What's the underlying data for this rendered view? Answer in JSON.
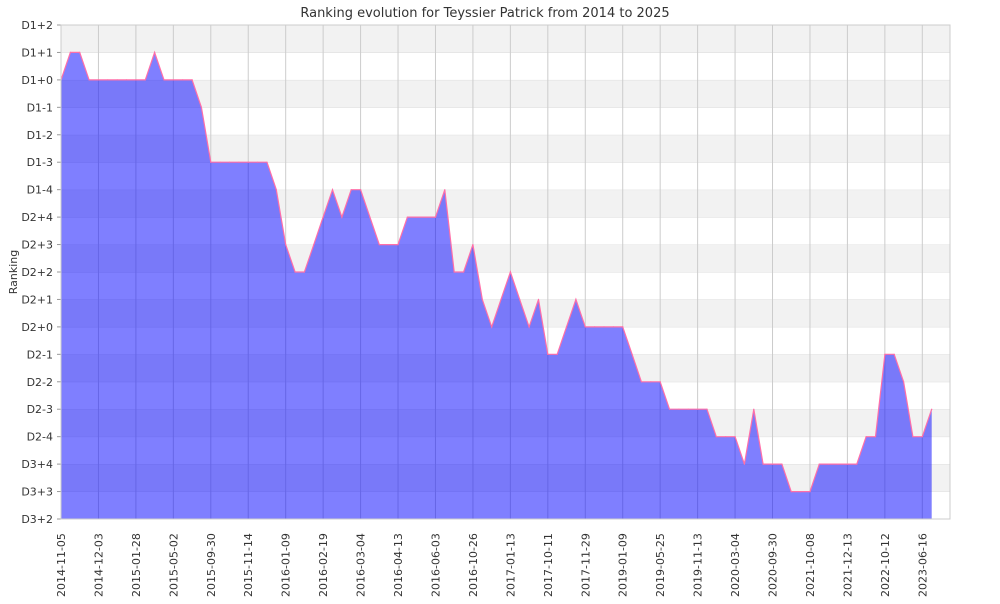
{
  "chart_data": {
    "type": "area",
    "title": "Ranking evolution for Teyssier Patrick from 2014 to 2025",
    "xlabel": "",
    "ylabel": "Ranking",
    "y_levels": [
      "D3+2",
      "D3+3",
      "D3+4",
      "D2-4",
      "D2-3",
      "D2-2",
      "D2-1",
      "D2+0",
      "D2+1",
      "D2+2",
      "D2+3",
      "D2+4",
      "D1-4",
      "D1-3",
      "D1-2",
      "D1-1",
      "D1+0",
      "D1+1",
      "D1+2"
    ],
    "x_tick_labels": [
      "2014-11-05",
      "2014-12-03",
      "2015-01-28",
      "2015-05-02",
      "2015-09-30",
      "2015-11-14",
      "2016-01-09",
      "2016-02-19",
      "2016-03-04",
      "2016-04-13",
      "2016-06-03",
      "2016-10-26",
      "2017-01-13",
      "2017-10-11",
      "2017-11-29",
      "2019-01-09",
      "2019-05-25",
      "2019-11-13",
      "2020-03-04",
      "2020-09-30",
      "2021-10-08",
      "2021-12-13",
      "2022-10-12",
      "2023-06-16"
    ],
    "points_per_tick": 4,
    "values_level_index": [
      16,
      17,
      17,
      16,
      16,
      16,
      16,
      16,
      16,
      16,
      17,
      16,
      16,
      16,
      16,
      15,
      13,
      13,
      13,
      13,
      13,
      13,
      13,
      12,
      10,
      9,
      9,
      10,
      11,
      12,
      11,
      12,
      12,
      11,
      10,
      10,
      10,
      11,
      11,
      11,
      11,
      12,
      9,
      9,
      10,
      8,
      7,
      8,
      9,
      8,
      7,
      8,
      6,
      6,
      7,
      8,
      7,
      7,
      7,
      7,
      7,
      6,
      5,
      5,
      5,
      4,
      4,
      4,
      4,
      4,
      3,
      3,
      3,
      2,
      4,
      2,
      2,
      2,
      1,
      1,
      1,
      2,
      2,
      2,
      2,
      2,
      3,
      3,
      6,
      6,
      5,
      3,
      3,
      4
    ],
    "grid": true,
    "legend": "none",
    "colors": {
      "fill": "#0000ff",
      "line": "#ff6fa8",
      "band": "#f2f2f2",
      "grid": "#cccccc"
    }
  }
}
